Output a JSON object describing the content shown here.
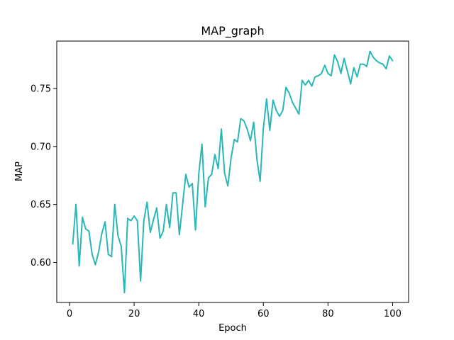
{
  "chart_data": {
    "type": "line",
    "title": "MAP_graph",
    "xlabel": "Epoch",
    "ylabel": "MAP",
    "xlim": [
      -3.95,
      104.95
    ],
    "ylim": [
      0.5655,
      0.7909
    ],
    "xticks": [
      0,
      20,
      40,
      60,
      80,
      100
    ],
    "yticks": [
      0.6,
      0.65,
      0.7,
      0.75
    ],
    "xtick_labels": [
      "0",
      "20",
      "40",
      "60",
      "80",
      "100"
    ],
    "ytick_labels": [
      "0.60",
      "0.65",
      "0.70",
      "0.75"
    ],
    "grid": false,
    "legend": "none",
    "series": [
      {
        "color": "#2ab7b7",
        "x": [
          1,
          2,
          3,
          4,
          5,
          6,
          7,
          8,
          9,
          10,
          11,
          12,
          13,
          14,
          15,
          16,
          17,
          18,
          19,
          20,
          21,
          22,
          23,
          24,
          25,
          26,
          27,
          28,
          29,
          30,
          31,
          32,
          33,
          34,
          35,
          36,
          37,
          38,
          39,
          40,
          41,
          42,
          43,
          44,
          45,
          46,
          47,
          48,
          49,
          50,
          51,
          52,
          53,
          54,
          55,
          56,
          57,
          58,
          59,
          60,
          61,
          62,
          63,
          64,
          65,
          66,
          67,
          68,
          69,
          70,
          71,
          72,
          73,
          74,
          75,
          76,
          77,
          78,
          79,
          80,
          81,
          82,
          83,
          84,
          85,
          86,
          87,
          88,
          89,
          90,
          91,
          92,
          93,
          94,
          95,
          96,
          97,
          98,
          99,
          100
        ],
        "values": [
          0.616,
          0.65,
          0.597,
          0.639,
          0.629,
          0.627,
          0.607,
          0.598,
          0.609,
          0.625,
          0.635,
          0.607,
          0.605,
          0.65,
          0.623,
          0.614,
          0.574,
          0.638,
          0.636,
          0.64,
          0.636,
          0.584,
          0.636,
          0.652,
          0.626,
          0.637,
          0.647,
          0.621,
          0.627,
          0.65,
          0.63,
          0.66,
          0.66,
          0.624,
          0.65,
          0.676,
          0.665,
          0.668,
          0.628,
          0.676,
          0.702,
          0.648,
          0.673,
          0.676,
          0.693,
          0.681,
          0.715,
          0.677,
          0.666,
          0.69,
          0.706,
          0.704,
          0.724,
          0.722,
          0.715,
          0.705,
          0.721,
          0.689,
          0.67,
          0.716,
          0.741,
          0.714,
          0.74,
          0.731,
          0.726,
          0.731,
          0.751,
          0.746,
          0.738,
          0.733,
          0.728,
          0.757,
          0.753,
          0.757,
          0.752,
          0.76,
          0.761,
          0.763,
          0.77,
          0.763,
          0.761,
          0.779,
          0.773,
          0.763,
          0.776,
          0.765,
          0.754,
          0.768,
          0.76,
          0.771,
          0.771,
          0.769,
          0.782,
          0.777,
          0.774,
          0.772,
          0.771,
          0.767,
          0.778,
          0.774
        ]
      }
    ]
  }
}
